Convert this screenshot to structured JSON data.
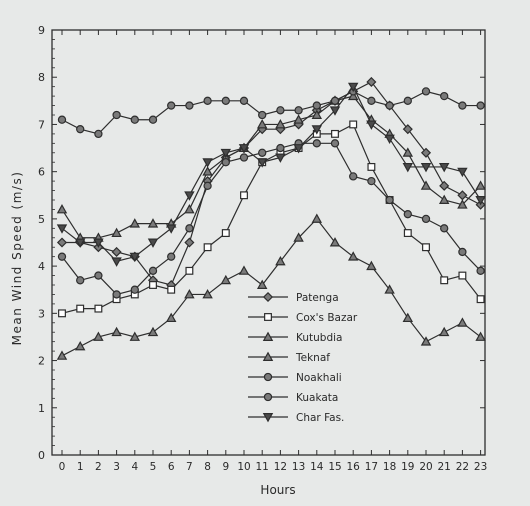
{
  "chart_data": {
    "type": "line",
    "xlabel": "Hours",
    "ylabel": "Mean Wind Speed (m/s)",
    "categories": [
      "0",
      "1",
      "2",
      "3",
      "4",
      "5",
      "6",
      "7",
      "8",
      "9",
      "10",
      "11",
      "12",
      "13",
      "14",
      "15",
      "16",
      "17",
      "18",
      "19",
      "20",
      "21",
      "22",
      "23"
    ],
    "yticks": [
      "0",
      "1",
      "2",
      "3",
      "4",
      "5",
      "6",
      "7",
      "8",
      "9"
    ],
    "ylim": [
      0,
      9
    ],
    "grid": false,
    "legend_position": "lower-center",
    "colors": {
      "line": "#2e2e2e",
      "background": "#e7e9e8"
    },
    "series": [
      {
        "name": "Patenga",
        "marker": "diamond",
        "values": [
          4.5,
          4.5,
          4.4,
          4.3,
          4.2,
          3.7,
          3.6,
          4.5,
          5.8,
          6.3,
          6.5,
          6.9,
          6.9,
          7.0,
          7.3,
          7.5,
          7.7,
          7.9,
          7.4,
          6.9,
          6.4,
          5.7,
          5.5,
          5.3
        ]
      },
      {
        "name": "Cox's Bazar",
        "marker": "square",
        "values": [
          3.0,
          3.1,
          3.1,
          3.3,
          3.4,
          3.6,
          3.5,
          3.9,
          4.4,
          4.7,
          5.5,
          6.2,
          6.4,
          6.5,
          6.8,
          6.8,
          7.0,
          6.1,
          5.4,
          4.7,
          4.4,
          3.7,
          3.8,
          3.3
        ]
      },
      {
        "name": "Kutubdia",
        "marker": "triangle-up",
        "values": [
          2.1,
          2.3,
          2.5,
          2.6,
          2.5,
          2.6,
          2.9,
          3.4,
          3.4,
          3.7,
          3.9,
          3.6,
          4.1,
          4.6,
          5.0,
          4.5,
          4.2,
          4.0,
          3.5,
          2.9,
          2.4,
          2.6,
          2.8,
          2.5
        ]
      },
      {
        "name": "Teknaf",
        "marker": "triangle-up",
        "values": [
          5.2,
          4.6,
          4.6,
          4.7,
          4.9,
          4.9,
          4.9,
          5.2,
          6.0,
          6.3,
          6.5,
          7.0,
          7.0,
          7.1,
          7.2,
          7.5,
          7.6,
          7.1,
          6.8,
          6.4,
          5.7,
          5.4,
          5.3,
          5.7
        ]
      },
      {
        "name": "Noakhali",
        "marker": "circle",
        "values": [
          4.2,
          3.7,
          3.8,
          3.4,
          3.5,
          3.9,
          4.2,
          4.8,
          5.7,
          6.2,
          6.3,
          6.4,
          6.5,
          6.6,
          6.6,
          6.6,
          5.9,
          5.8,
          5.4,
          5.1,
          5.0,
          4.8,
          4.3,
          3.9
        ]
      },
      {
        "name": "Kuakata",
        "marker": "circle",
        "values": [
          7.1,
          6.9,
          6.8,
          7.2,
          7.1,
          7.1,
          7.4,
          7.4,
          7.5,
          7.5,
          7.5,
          7.2,
          7.3,
          7.3,
          7.4,
          7.5,
          7.7,
          7.5,
          7.4,
          7.5,
          7.7,
          7.6,
          7.4,
          7.4
        ]
      },
      {
        "name": "Char Fas.",
        "marker": "triangle-down",
        "values": [
          4.8,
          4.5,
          4.5,
          4.1,
          4.2,
          4.5,
          4.8,
          5.5,
          6.2,
          6.4,
          6.5,
          6.2,
          6.3,
          6.5,
          6.9,
          7.3,
          7.8,
          7.0,
          6.7,
          6.1,
          6.1,
          6.1,
          6.0,
          5.4
        ]
      }
    ]
  }
}
